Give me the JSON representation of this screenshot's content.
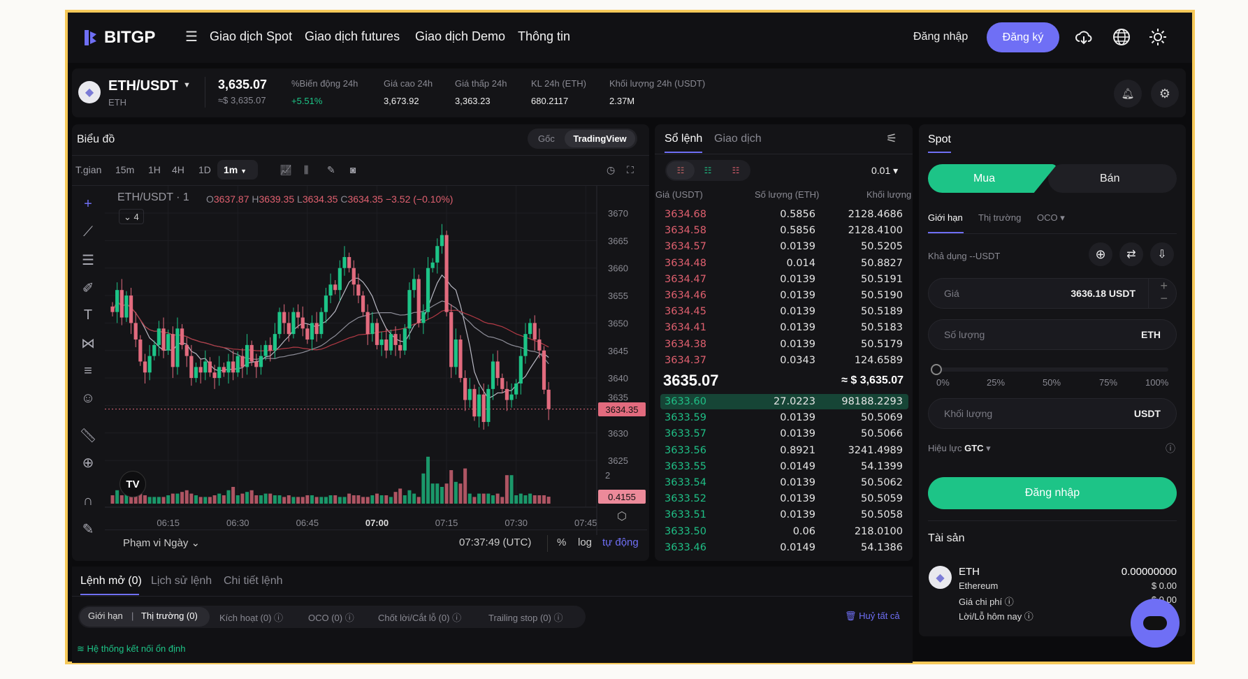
{
  "brand": {
    "name": "BITGP",
    "accent": "#6f6ff5",
    "buy_color": "#1dc487",
    "sell_color": "#e0606f",
    "frame_color": "#f6c95a"
  },
  "nav": {
    "items": [
      "Giao dịch Spot",
      "Giao dịch futures",
      "Giao dịch Demo",
      "Thông tin"
    ],
    "login": "Đăng nhập",
    "register": "Đăng ký",
    "icons": [
      "menu-icon",
      "cloud-download-icon",
      "globe-icon",
      "sun-icon"
    ]
  },
  "ticker": {
    "pair": "ETH/USDT",
    "base": "ETH",
    "price": "3,635.07",
    "price_usd": "≈$ 3,635.07",
    "stats": [
      {
        "label": "%Biến động 24h",
        "value": "+5.51%"
      },
      {
        "label": "Giá cao 24h",
        "value": "3,673.92"
      },
      {
        "label": "Giá thấp 24h",
        "value": "3,363.23"
      },
      {
        "label": "KL 24h (ETH)",
        "value": "680.2117"
      },
      {
        "label": "Khối lượng 24h (USDT)",
        "value": "2.37M"
      }
    ]
  },
  "chart": {
    "title": "Biểu đồ",
    "modes": [
      "Gốc",
      "TradingView"
    ],
    "active_mode": "TradingView",
    "intervals": [
      "T.gian",
      "15m",
      "1H",
      "4H",
      "1D"
    ],
    "active_interval": "1m",
    "legend": {
      "symbol": "ETH/USDT · 1",
      "o_label": "O",
      "o": "3637.87",
      "h_label": "H",
      "h": "3639.35",
      "l_label": "L",
      "l": "3634.35",
      "c_label": "C",
      "c": "3634.35",
      "change": "−3.52 (−0.10%)"
    },
    "indicators_badge": "4",
    "last_price_label": "3634.35",
    "volume_label": "0.4155",
    "volume_axis_tick": "2",
    "range": "Phạm vi Ngày",
    "clock": "07:37:49 (UTC)",
    "percent": "%",
    "log": "log",
    "auto": "tự động"
  },
  "chart_data": {
    "type": "candlestick",
    "symbol": "ETH/USDT",
    "interval": "1m",
    "start_time": "06:03",
    "x_ticks": [
      "06:15",
      "06:30",
      "06:45",
      "07:00",
      "07:15",
      "07:30",
      "07:45"
    ],
    "y_ticks": [
      3670,
      3665,
      3660,
      3655,
      3650,
      3645,
      3640,
      3635,
      3630,
      3625
    ],
    "ylim": [
      3625,
      3672
    ],
    "closes": [
      3652,
      3656,
      3651,
      3655,
      3650,
      3647,
      3643,
      3641,
      3644,
      3646,
      3649,
      3645,
      3648,
      3642,
      3649,
      3646,
      3644,
      3640,
      3642,
      3641,
      3643,
      3641,
      3640,
      3642,
      3641,
      3643,
      3641,
      3644,
      3642,
      3646,
      3643,
      3642,
      3644,
      3646,
      3645,
      3648,
      3652,
      3650,
      3648,
      3652,
      3651,
      3649,
      3647,
      3650,
      3648,
      3652,
      3655,
      3657,
      3656,
      3660,
      3662,
      3660,
      3657,
      3655,
      3652,
      3648,
      3650,
      3646,
      3647,
      3645,
      3648,
      3646,
      3645,
      3649,
      3656,
      3658,
      3650,
      3652,
      3660,
      3661,
      3664,
      3666,
      3652,
      3642,
      3647,
      3640,
      3636,
      3638,
      3633,
      3637,
      3632,
      3638,
      3643,
      3640,
      3638,
      3636,
      3637,
      3639,
      3644,
      3648,
      3650,
      3647,
      3645,
      3637.87,
      3634.35
    ],
    "volumes": [
      0.5,
      0.8,
      0.5,
      0.6,
      0.6,
      0.7,
      0.6,
      0.5,
      0.4,
      0.4,
      0.4,
      0.4,
      0.5,
      0.6,
      0.6,
      0.7,
      0.8,
      0.6,
      0.5,
      0.4,
      0.4,
      0.4,
      0.5,
      0.6,
      0.5,
      0.8,
      1.0,
      0.5,
      0.6,
      0.7,
      0.8,
      0.5,
      0.5,
      0.6,
      0.6,
      0.5,
      0.5,
      0.4,
      0.5,
      0.4,
      0.4,
      0.4,
      0.5,
      0.5,
      0.4,
      0.4,
      0.4,
      0.5,
      0.5,
      0.4,
      0.4,
      0.6,
      0.5,
      0.5,
      0.4,
      0.4,
      0.5,
      0.6,
      0.5,
      0.5,
      0.4,
      0.7,
      0.9,
      0.5,
      0.8,
      0.6,
      0.4,
      1.8,
      2.8,
      1.2,
      1.2,
      1.0,
      1.2,
      2.0,
      1.3,
      1.2,
      2.1,
      0.6,
      0.4,
      0.6,
      0.6,
      0.6,
      0.5,
      0.6,
      0.4,
      1.7,
      1.7,
      0.5,
      0.6,
      0.5,
      0.6,
      0.5,
      0.5,
      0.5,
      0.4155
    ],
    "moving_averages": [
      7,
      25,
      99
    ]
  },
  "orderbook": {
    "tabs": [
      "Sổ lệnh",
      "Giao dịch"
    ],
    "precision": "0.01",
    "headers": [
      "Giá (USDT)",
      "Số lượng (ETH)",
      "Khối lượng"
    ],
    "asks": [
      [
        "3634.68",
        "0.5856",
        "2128.4686"
      ],
      [
        "3634.58",
        "0.5856",
        "2128.4100"
      ],
      [
        "3634.57",
        "0.0139",
        "50.5205"
      ],
      [
        "3634.48",
        "0.014",
        "50.8827"
      ],
      [
        "3634.47",
        "0.0139",
        "50.5191"
      ],
      [
        "3634.46",
        "0.0139",
        "50.5190"
      ],
      [
        "3634.45",
        "0.0139",
        "50.5189"
      ],
      [
        "3634.41",
        "0.0139",
        "50.5183"
      ],
      [
        "3634.38",
        "0.0139",
        "50.5179"
      ],
      [
        "3634.37",
        "0.0343",
        "124.6589"
      ]
    ],
    "mid_price": "3635.07",
    "mid_usd": "≈ $ 3,635.07",
    "bids": [
      [
        "3633.60",
        "27.0223",
        "98188.2293"
      ],
      [
        "3633.59",
        "0.0139",
        "50.5069"
      ],
      [
        "3633.57",
        "0.0139",
        "50.5066"
      ],
      [
        "3633.56",
        "0.8921",
        "3241.4989"
      ],
      [
        "3633.55",
        "0.0149",
        "54.1399"
      ],
      [
        "3633.54",
        "0.0139",
        "50.5062"
      ],
      [
        "3633.52",
        "0.0139",
        "50.5059"
      ],
      [
        "3633.51",
        "0.0139",
        "50.5058"
      ],
      [
        "3633.50",
        "0.06",
        "218.0100"
      ],
      [
        "3633.46",
        "0.0149",
        "54.1386"
      ]
    ]
  },
  "spot": {
    "tab": "Spot",
    "buy": "Mua",
    "sell": "Bán",
    "order_types": [
      "Giới hạn",
      "Thị trường",
      "OCO"
    ],
    "available": "Khả dụng --USDT",
    "price_label": "Giá",
    "price_value": "3636.18 USDT",
    "qty_label": "Số lượng",
    "qty_unit": "ETH",
    "slider_marks": [
      "0%",
      "25%",
      "50%",
      "75%",
      "100%"
    ],
    "slider_value": 0,
    "total_label": "Khối lượng",
    "total_unit": "USDT",
    "tif_label": "Hiệu lực",
    "tif_value": "GTC",
    "submit": "Đăng nhập",
    "assets_title": "Tài sản",
    "asset": {
      "symbol": "ETH",
      "name": "Ethereum",
      "amount": "0.00000000",
      "usd": "$ 0.00",
      "cost_label": "Giá chi phí",
      "cost_value": "$ 0.00",
      "pnl_label": "Lời/Lỗ hôm nay"
    }
  },
  "orders": {
    "tabs": [
      "Lệnh mở (0)",
      "Lịch sử lệnh",
      "Chi tiết lệnh"
    ],
    "filters": [
      "Giới hạn",
      "Thị trường (0)",
      "Kích hoạt (0)",
      "OCO (0)",
      "Chốt lời/Cắt lỗ (0)",
      "Trailing stop  (0)"
    ],
    "cancel_all": "Huỷ tất cả"
  },
  "status": "Hệ thống kết nối ổn định"
}
